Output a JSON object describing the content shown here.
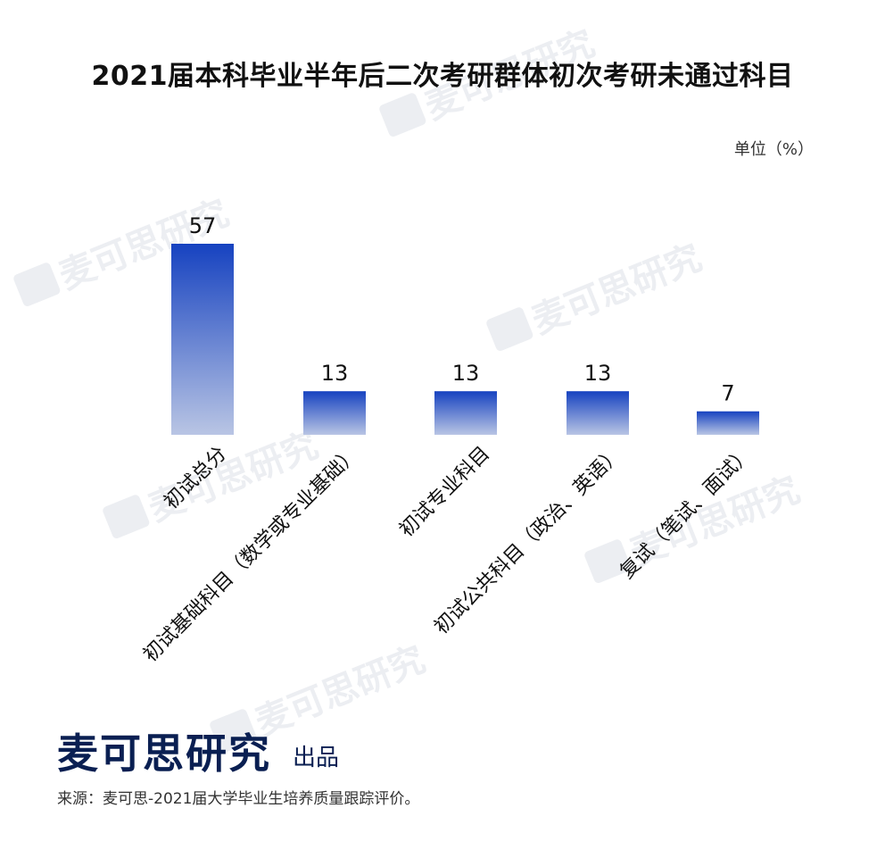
{
  "chart_data": {
    "type": "bar",
    "title": "2021届本科毕业半年后二次考研群体初次考研未通过科目",
    "unit_label": "单位（%）",
    "categories": [
      "初试总分",
      "初试基础科目（数学或专业基础）",
      "初试专业科目",
      "初试公共科目（政治、英语）",
      "复试（笔试、面试）"
    ],
    "values": [
      57,
      13,
      13,
      13,
      7
    ],
    "data_labels": [
      "57",
      "13",
      "13",
      "13",
      "7"
    ],
    "ylim": [
      0,
      57
    ],
    "grid": false,
    "legend": "none",
    "bar_gradient": {
      "top": "#1642c0",
      "bottom": "#b9c5e4"
    }
  },
  "brand": {
    "name": "麦可思研究",
    "suffix": "出品"
  },
  "source_note": "来源：麦可思-2021届大学毕业生培养质量跟踪评价。",
  "watermark_text": "麦可思研究"
}
